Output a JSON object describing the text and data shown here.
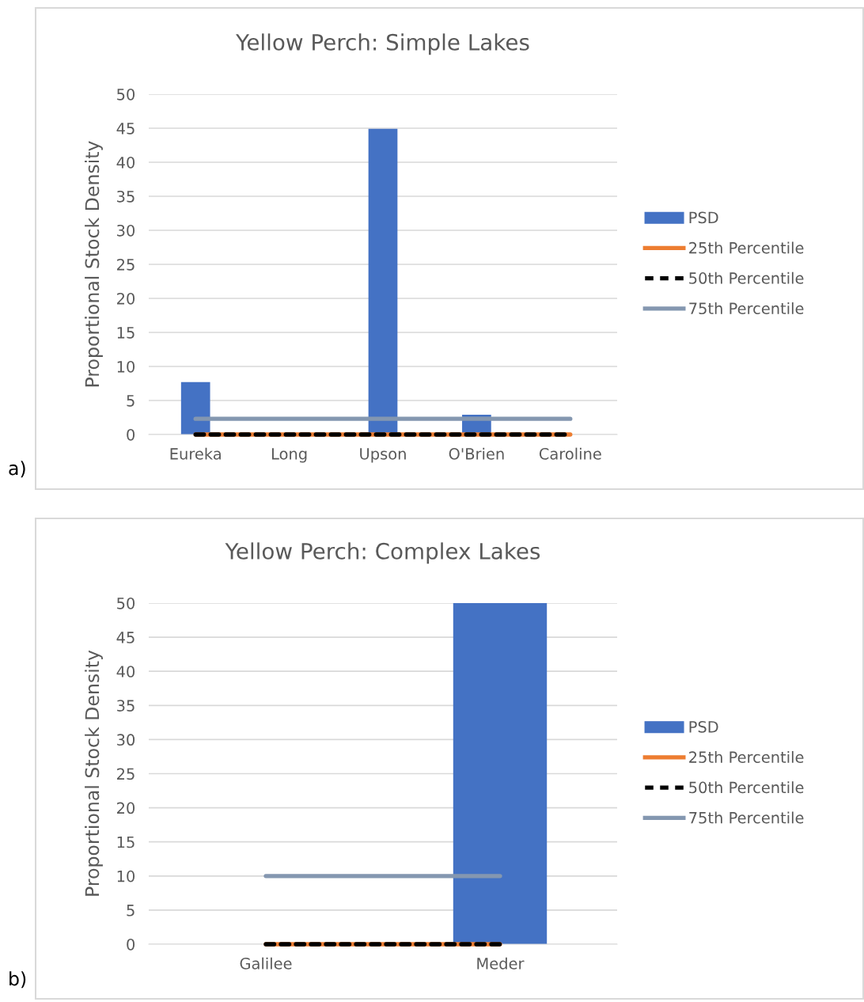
{
  "chart_data": [
    {
      "type": "bar",
      "title": "Yellow Perch: Simple Lakes",
      "ylabel": "Proportional Stock Density",
      "categories": [
        "Eureka",
        "Long",
        "Upson",
        "O'Brien",
        "Caroline"
      ],
      "ylim": [
        0,
        50
      ],
      "yticks": [
        0,
        5,
        10,
        15,
        20,
        25,
        30,
        35,
        40,
        45,
        50
      ],
      "grid": "y",
      "legend": "right",
      "annotations": [
        "a)"
      ],
      "series": [
        {
          "name": "PSD",
          "color": "#4472c4",
          "values": [
            7.7,
            0,
            44.9,
            2.9,
            0
          ]
        },
        {
          "name": "25th Percentile",
          "type": "line",
          "color": "#ed7d31",
          "values": [
            0,
            0,
            0,
            0,
            0
          ],
          "line_style": "solid"
        },
        {
          "name": "50th Percentile",
          "type": "line",
          "color": "#000000",
          "values": [
            0,
            0,
            0,
            0,
            0
          ],
          "line_style": "dashed"
        },
        {
          "name": "75th Percentile",
          "type": "line",
          "color": "#8497b0",
          "values": [
            2.3,
            2.3,
            2.3,
            2.3,
            2.3
          ],
          "line_style": "solid"
        }
      ]
    },
    {
      "type": "bar",
      "title": "Yellow Perch: Complex Lakes",
      "ylabel": "Proportional Stock Density",
      "categories": [
        "Galilee",
        "Meder"
      ],
      "ylim": [
        0,
        50
      ],
      "yticks": [
        0,
        5,
        10,
        15,
        20,
        25,
        30,
        35,
        40,
        45,
        50
      ],
      "grid": "y",
      "legend": "right",
      "annotations": [
        "b)"
      ],
      "series": [
        {
          "name": "PSD",
          "color": "#4472c4",
          "values": [
            null,
            50
          ]
        },
        {
          "name": "25th Percentile",
          "type": "line",
          "color": "#ed7d31",
          "values": [
            0,
            0
          ],
          "line_style": "solid"
        },
        {
          "name": "50th Percentile",
          "type": "line",
          "color": "#000000",
          "values": [
            0,
            0
          ],
          "line_style": "dashed"
        },
        {
          "name": "75th Percentile",
          "type": "line",
          "color": "#8497b0",
          "values": [
            10,
            10
          ],
          "line_style": "solid"
        }
      ]
    }
  ]
}
